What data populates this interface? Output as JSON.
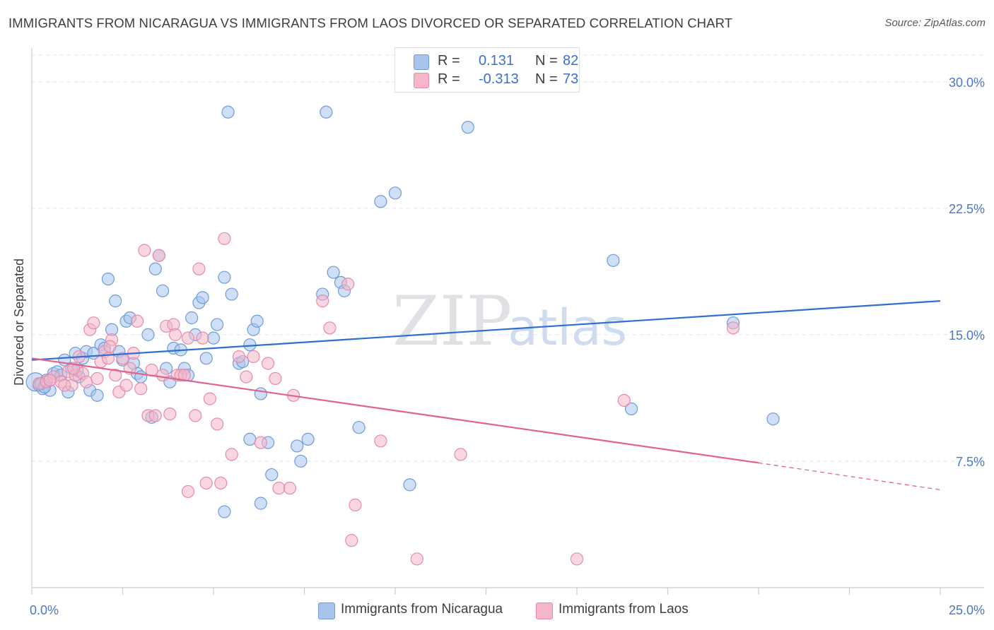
{
  "title": "IMMIGRANTS FROM NICARAGUA VS IMMIGRANTS FROM LAOS DIVORCED OR SEPARATED CORRELATION CHART",
  "source": "Source: ZipAtlas.com",
  "watermark": {
    "zip": "ZIP",
    "atlas": "atlas"
  },
  "colors": {
    "blue_fill": "#a8c4ec",
    "blue_stroke": "#6f9bdb",
    "blue_line": "#2f6fd1",
    "pink_fill": "#f4b6c8",
    "pink_stroke": "#e88aa8",
    "pink_line": "#e2628f",
    "tick_text": "#4a78c6",
    "grid": "#e3e5e8"
  },
  "legend": {
    "rows": [
      {
        "r_label": "R =",
        "r_value": "0.131",
        "n_label": "N =",
        "n_value": "82"
      },
      {
        "r_label": "R =",
        "r_value": "-0.313",
        "n_label": "N =",
        "n_value": "73"
      }
    ],
    "bottom": [
      "Immigrants from Nicaragua",
      "Immigrants from Laos"
    ]
  },
  "chart_data": {
    "type": "scatter",
    "title": "IMMIGRANTS FROM NICARAGUA VS IMMIGRANTS FROM LAOS DIVORCED OR SEPARATED CORRELATION CHART",
    "xlabel": "",
    "ylabel": "Divorced or Separated",
    "xlim": [
      0,
      25
    ],
    "ylim": [
      0,
      32
    ],
    "x_tick_labels": [
      "0.0%",
      "25.0%"
    ],
    "y_ticks": [
      7.5,
      15.0,
      22.5,
      30.0
    ],
    "y_tick_labels": [
      "7.5%",
      "15.0%",
      "22.5%",
      "30.0%"
    ],
    "grid": true,
    "legend_position": "top-center",
    "series": [
      {
        "name": "Immigrants from Nicaragua",
        "r": 0.131,
        "n": 82,
        "trend": {
          "x": [
            0,
            25
          ],
          "y": [
            13.5,
            17.0
          ]
        },
        "points": [
          [
            0.1,
            12.2
          ],
          [
            0.2,
            12.0
          ],
          [
            0.3,
            11.8
          ],
          [
            0.4,
            12.3
          ],
          [
            0.5,
            11.7
          ],
          [
            0.6,
            12.7
          ],
          [
            0.7,
            12.8
          ],
          [
            0.8,
            12.6
          ],
          [
            0.9,
            13.5
          ],
          [
            1.0,
            11.6
          ],
          [
            1.1,
            13.0
          ],
          [
            1.2,
            13.9
          ],
          [
            1.3,
            12.5
          ],
          [
            1.4,
            13.6
          ],
          [
            1.5,
            14.0
          ],
          [
            1.6,
            11.7
          ],
          [
            1.7,
            13.9
          ],
          [
            1.8,
            11.4
          ],
          [
            1.9,
            14.4
          ],
          [
            2.0,
            14.2
          ],
          [
            2.1,
            18.3
          ],
          [
            2.2,
            15.3
          ],
          [
            2.3,
            17.0
          ],
          [
            2.4,
            14.0
          ],
          [
            2.5,
            13.5
          ],
          [
            2.6,
            15.8
          ],
          [
            2.7,
            16.0
          ],
          [
            2.8,
            13.3
          ],
          [
            2.9,
            12.7
          ],
          [
            3.0,
            12.5
          ],
          [
            3.2,
            15.0
          ],
          [
            3.3,
            10.1
          ],
          [
            3.4,
            18.9
          ],
          [
            3.5,
            19.7
          ],
          [
            3.6,
            17.6
          ],
          [
            3.7,
            13.0
          ],
          [
            3.8,
            12.2
          ],
          [
            3.9,
            14.2
          ],
          [
            4.1,
            14.1
          ],
          [
            4.2,
            13.0
          ],
          [
            4.3,
            12.6
          ],
          [
            4.4,
            16.0
          ],
          [
            4.5,
            15.0
          ],
          [
            4.6,
            16.9
          ],
          [
            4.7,
            17.2
          ],
          [
            4.8,
            13.6
          ],
          [
            5.0,
            14.8
          ],
          [
            5.1,
            15.6
          ],
          [
            5.3,
            18.4
          ],
          [
            5.4,
            28.2
          ],
          [
            5.5,
            17.4
          ],
          [
            5.7,
            13.3
          ],
          [
            5.8,
            13.4
          ],
          [
            6.0,
            14.4
          ],
          [
            6.1,
            15.3
          ],
          [
            6.2,
            15.8
          ],
          [
            6.3,
            11.5
          ],
          [
            6.0,
            8.8
          ],
          [
            6.5,
            8.6
          ],
          [
            6.6,
            6.7
          ],
          [
            5.3,
            4.5
          ],
          [
            6.3,
            5.0
          ],
          [
            7.3,
            8.4
          ],
          [
            7.4,
            7.5
          ],
          [
            7.6,
            8.8
          ],
          [
            8.0,
            17.4
          ],
          [
            8.1,
            28.2
          ],
          [
            8.3,
            18.7
          ],
          [
            8.5,
            18.1
          ],
          [
            8.6,
            17.6
          ],
          [
            9.0,
            9.5
          ],
          [
            9.6,
            22.9
          ],
          [
            10.0,
            23.4
          ],
          [
            10.4,
            6.1
          ],
          [
            12.0,
            27.3
          ],
          [
            16.0,
            19.4
          ],
          [
            16.5,
            10.6
          ],
          [
            19.3,
            15.7
          ],
          [
            20.4,
            10.0
          ],
          [
            0.25,
            12.1
          ],
          [
            0.35,
            11.9
          ],
          [
            1.25,
            12.9
          ]
        ]
      },
      {
        "name": "Immigrants from Laos",
        "r": -0.313,
        "n": 73,
        "trend": {
          "x": [
            0,
            20
          ],
          "y": [
            13.6,
            7.4
          ]
        },
        "trend_dashed": {
          "x": [
            20,
            25
          ],
          "y": [
            7.4,
            5.8
          ]
        },
        "points": [
          [
            0.2,
            12.1
          ],
          [
            0.4,
            12.2
          ],
          [
            0.6,
            12.5
          ],
          [
            0.8,
            12.2
          ],
          [
            1.0,
            12.8
          ],
          [
            1.1,
            12.0
          ],
          [
            1.2,
            12.6
          ],
          [
            1.3,
            13.7
          ],
          [
            1.4,
            12.7
          ],
          [
            1.5,
            12.2
          ],
          [
            1.6,
            15.3
          ],
          [
            1.7,
            15.7
          ],
          [
            1.8,
            12.4
          ],
          [
            1.9,
            13.4
          ],
          [
            2.0,
            14.0
          ],
          [
            2.1,
            13.6
          ],
          [
            2.2,
            14.7
          ],
          [
            2.3,
            12.6
          ],
          [
            2.4,
            11.6
          ],
          [
            2.5,
            13.6
          ],
          [
            2.6,
            12.0
          ],
          [
            2.7,
            13.0
          ],
          [
            2.8,
            13.9
          ],
          [
            2.9,
            15.8
          ],
          [
            3.0,
            11.8
          ],
          [
            3.1,
            20.0
          ],
          [
            3.2,
            10.2
          ],
          [
            3.3,
            12.9
          ],
          [
            3.4,
            10.2
          ],
          [
            3.5,
            19.7
          ],
          [
            3.6,
            12.6
          ],
          [
            3.7,
            15.5
          ],
          [
            3.8,
            10.3
          ],
          [
            3.9,
            15.6
          ],
          [
            4.0,
            12.6
          ],
          [
            4.1,
            12.6
          ],
          [
            4.2,
            12.6
          ],
          [
            4.3,
            14.8
          ],
          [
            4.5,
            10.2
          ],
          [
            4.6,
            18.9
          ],
          [
            4.7,
            14.8
          ],
          [
            4.8,
            6.2
          ],
          [
            4.9,
            11.2
          ],
          [
            5.1,
            9.7
          ],
          [
            5.2,
            6.2
          ],
          [
            5.3,
            20.7
          ],
          [
            5.5,
            7.9
          ],
          [
            5.7,
            13.7
          ],
          [
            5.9,
            12.5
          ],
          [
            6.1,
            13.7
          ],
          [
            6.3,
            8.6
          ],
          [
            6.5,
            13.3
          ],
          [
            6.7,
            12.4
          ],
          [
            6.8,
            5.9
          ],
          [
            7.1,
            5.9
          ],
          [
            7.2,
            11.4
          ],
          [
            8.0,
            17.0
          ],
          [
            8.2,
            15.4
          ],
          [
            8.7,
            18.0
          ],
          [
            8.8,
            2.8
          ],
          [
            8.9,
            4.9
          ],
          [
            9.6,
            8.7
          ],
          [
            10.6,
            1.7
          ],
          [
            11.8,
            7.9
          ],
          [
            15.0,
            1.7
          ],
          [
            16.3,
            11.1
          ],
          [
            19.3,
            15.4
          ],
          [
            4.3,
            5.7
          ],
          [
            0.5,
            12.3
          ],
          [
            0.9,
            12.0
          ],
          [
            1.15,
            13.0
          ],
          [
            2.15,
            14.3
          ],
          [
            3.95,
            15.0
          ]
        ]
      }
    ]
  }
}
